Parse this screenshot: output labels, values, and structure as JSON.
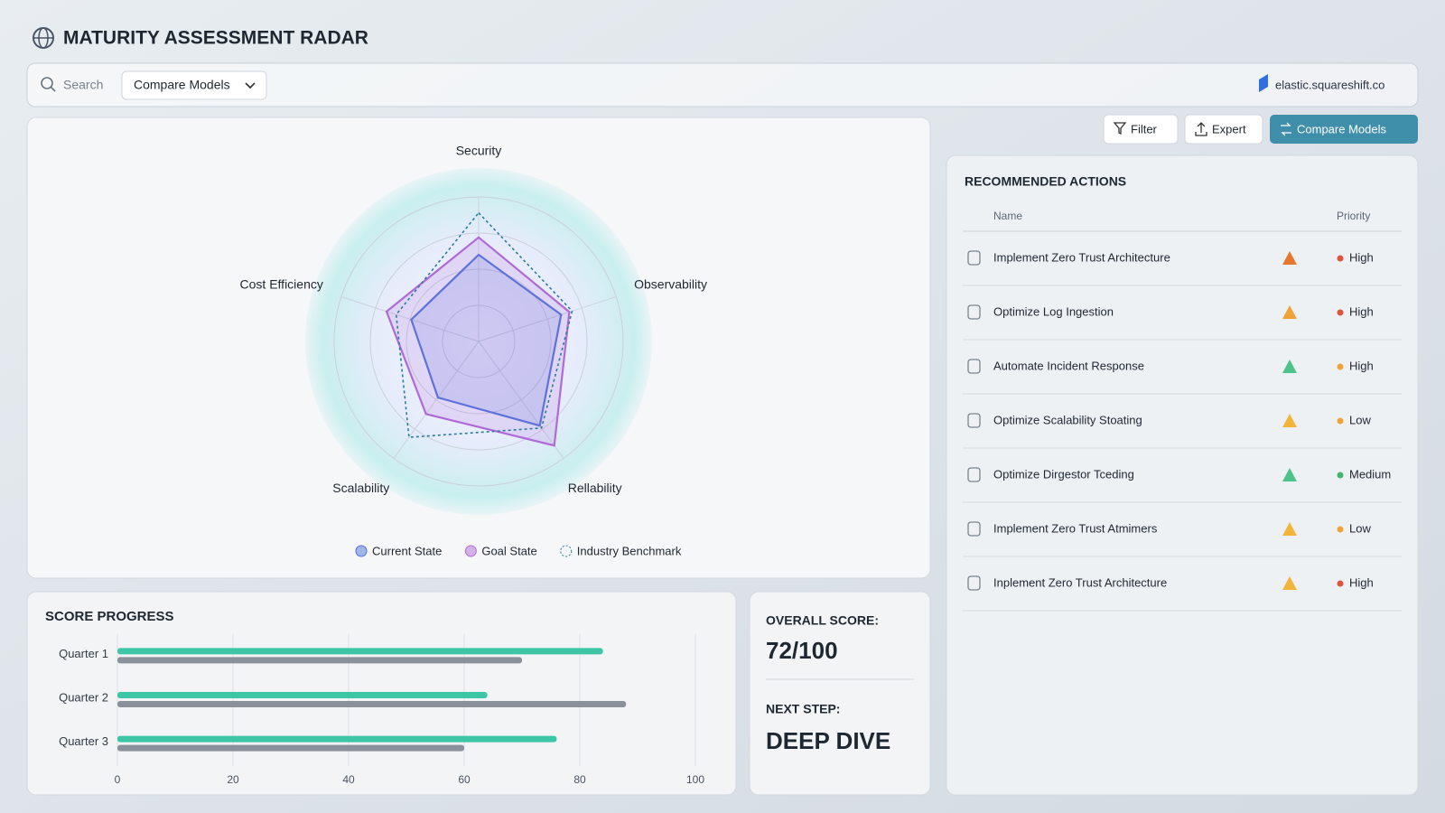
{
  "header": {
    "title": "MATURITY ASSESSMENT RADAR",
    "search_placeholder": "Search",
    "dropdown": "Compare Models",
    "brand": "elastic.squareshift.co"
  },
  "buttons": {
    "filter": "Filter",
    "export": "Expert",
    "compare": "Compare Models"
  },
  "chart_data": [
    {
      "type": "radar",
      "categories": [
        "Security",
        "Observability",
        "Rellability",
        "Scalability",
        "Cost Efficiency"
      ],
      "rlim": [
        0,
        100
      ],
      "rticks": [
        25,
        50,
        75,
        100
      ],
      "series": [
        {
          "name": "Current State",
          "color": "#4d74dc",
          "values": [
            60,
            60,
            72,
            48,
            49
          ]
        },
        {
          "name": "Goal State",
          "color": "#b06ad8",
          "values": [
            72,
            66,
            89,
            62,
            67
          ]
        },
        {
          "name": "Industry Benchmark",
          "color": "#2b7c9c",
          "dashed": true,
          "values": [
            89,
            68,
            74,
            82,
            60
          ]
        }
      ]
    },
    {
      "type": "bar",
      "orientation": "horizontal",
      "title": "SCORE PROGRESS",
      "categories": [
        "Quarter 1",
        "Quarter 2",
        "Quarter 3"
      ],
      "series": [
        {
          "color": "#3cc6a6",
          "values": [
            84,
            64,
            76
          ]
        },
        {
          "color": "#8b919b",
          "values": [
            70,
            88,
            60
          ]
        }
      ],
      "xlim": [
        0,
        100
      ],
      "xticks": [
        0,
        20,
        40,
        60,
        80,
        100
      ],
      "grid": true
    }
  ],
  "summary": {
    "overall_label": "OVERALL SCORE:",
    "overall_value": "72/100",
    "next_label": "NEXT STEP:",
    "next_value": "DEEP DIVE"
  },
  "actions": {
    "title": "RECOMMENDED ACTIONS",
    "columns": [
      "Name",
      "Priority"
    ],
    "rows": [
      {
        "name": "Implement Zero Trust Architecture",
        "priority": "High",
        "priority_color": "#e0553a",
        "status_color": "#e8772e"
      },
      {
        "name": "Optimize Log Ingestion",
        "priority": "High",
        "priority_color": "#e0553a",
        "status_color": "#f0a23a"
      },
      {
        "name": "Automate Incident Response",
        "priority": "High",
        "priority_color": "#f0a23a",
        "status_color": "#4cc48a"
      },
      {
        "name": "Optimize Scalability Stoating",
        "priority": "Low",
        "priority_color": "#f0a23a",
        "status_color": "#f2b53c"
      },
      {
        "name": "Optimize Dirgestor Tceding",
        "priority": "Medium",
        "priority_color": "#3fb66e",
        "status_color": "#4cc48a"
      },
      {
        "name": "Implement Zero Trust Atmimers",
        "priority": "Low",
        "priority_color": "#f0a23a",
        "status_color": "#f2b53c"
      },
      {
        "name": "Inplement Zero Trust Architecture",
        "priority": "High",
        "priority_color": "#e0553a",
        "status_color": "#f2b53c"
      }
    ]
  }
}
